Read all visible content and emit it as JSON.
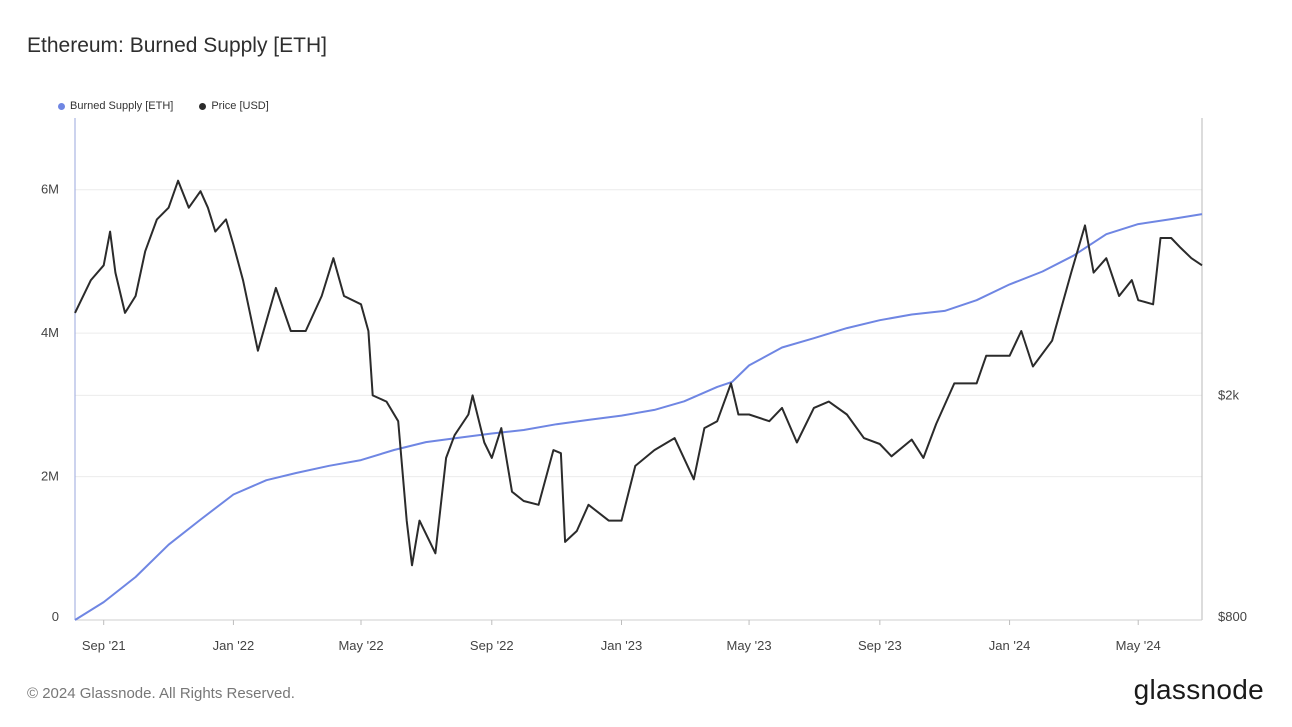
{
  "title": "Ethereum: Burned Supply [ETH]",
  "footer": "© 2024 Glassnode. All Rights Reserved.",
  "brand": "glassnode",
  "colors": {
    "burned": "#6f86e3",
    "price": "#2b2b2b",
    "grid": "#ececec",
    "axis": "#9aa7dd"
  },
  "chart_data": {
    "type": "line",
    "x_ticks": [
      "Sep '21",
      "Jan '22",
      "May '22",
      "Sep '22",
      "Jan '23",
      "May '23",
      "Sep '23",
      "Jan '24",
      "May '24"
    ],
    "x_tick_dates": [
      "2021-09-01",
      "2022-01-01",
      "2022-05-01",
      "2022-09-01",
      "2023-01-01",
      "2023-05-01",
      "2023-09-01",
      "2024-01-01",
      "2024-05-01"
    ],
    "x_range": [
      "2021-08-05",
      "2024-06-30"
    ],
    "y_left": {
      "range": [
        0,
        7000000
      ],
      "ticks": [
        0,
        2000000,
        4000000,
        6000000
      ],
      "tick_labels": [
        "0",
        "2M",
        "4M",
        "6M"
      ]
    },
    "y_right": {
      "scale": "log",
      "range": [
        800,
        6200
      ],
      "ticks": [
        800,
        2000
      ],
      "tick_labels": [
        "$800",
        "$2k"
      ]
    },
    "grid": true,
    "legend_position": "top-left",
    "series": [
      {
        "name": "Burned Supply [ETH]",
        "axis": "left",
        "color": "#6f86e3",
        "points": [
          [
            "2021-08-05",
            0
          ],
          [
            "2021-09-01",
            250000
          ],
          [
            "2021-10-01",
            600000
          ],
          [
            "2021-11-01",
            1050000
          ],
          [
            "2021-12-01",
            1400000
          ],
          [
            "2022-01-01",
            1750000
          ],
          [
            "2022-02-01",
            1950000
          ],
          [
            "2022-03-01",
            2050000
          ],
          [
            "2022-04-01",
            2150000
          ],
          [
            "2022-05-01",
            2230000
          ],
          [
            "2022-06-01",
            2370000
          ],
          [
            "2022-07-01",
            2480000
          ],
          [
            "2022-08-01",
            2540000
          ],
          [
            "2022-09-01",
            2600000
          ],
          [
            "2022-10-01",
            2650000
          ],
          [
            "2022-11-01",
            2730000
          ],
          [
            "2022-12-01",
            2790000
          ],
          [
            "2023-01-01",
            2850000
          ],
          [
            "2023-02-01",
            2930000
          ],
          [
            "2023-03-01",
            3050000
          ],
          [
            "2023-04-01",
            3250000
          ],
          [
            "2023-04-15",
            3320000
          ],
          [
            "2023-05-01",
            3550000
          ],
          [
            "2023-06-01",
            3800000
          ],
          [
            "2023-07-01",
            3930000
          ],
          [
            "2023-08-01",
            4070000
          ],
          [
            "2023-09-01",
            4180000
          ],
          [
            "2023-10-01",
            4260000
          ],
          [
            "2023-11-01",
            4310000
          ],
          [
            "2023-12-01",
            4460000
          ],
          [
            "2024-01-01",
            4680000
          ],
          [
            "2024-02-01",
            4860000
          ],
          [
            "2024-03-01",
            5080000
          ],
          [
            "2024-04-01",
            5380000
          ],
          [
            "2024-05-01",
            5520000
          ],
          [
            "2024-06-01",
            5590000
          ],
          [
            "2024-06-30",
            5660000
          ]
        ]
      },
      {
        "name": "Price [USD]",
        "axis": "right",
        "color": "#2b2b2b",
        "points": [
          [
            "2021-08-05",
            2800
          ],
          [
            "2021-08-20",
            3200
          ],
          [
            "2021-09-01",
            3400
          ],
          [
            "2021-09-07",
            3900
          ],
          [
            "2021-09-12",
            3300
          ],
          [
            "2021-09-21",
            2800
          ],
          [
            "2021-10-01",
            3000
          ],
          [
            "2021-10-10",
            3600
          ],
          [
            "2021-10-21",
            4100
          ],
          [
            "2021-11-01",
            4300
          ],
          [
            "2021-11-10",
            4800
          ],
          [
            "2021-11-20",
            4300
          ],
          [
            "2021-12-01",
            4600
          ],
          [
            "2021-12-08",
            4300
          ],
          [
            "2021-12-15",
            3900
          ],
          [
            "2021-12-25",
            4100
          ],
          [
            "2022-01-01",
            3700
          ],
          [
            "2022-01-10",
            3200
          ],
          [
            "2022-01-24",
            2400
          ],
          [
            "2022-02-10",
            3100
          ],
          [
            "2022-02-24",
            2600
          ],
          [
            "2022-03-10",
            2600
          ],
          [
            "2022-03-25",
            3000
          ],
          [
            "2022-04-05",
            3500
          ],
          [
            "2022-04-15",
            3000
          ],
          [
            "2022-05-01",
            2900
          ],
          [
            "2022-05-08",
            2600
          ],
          [
            "2022-05-12",
            2000
          ],
          [
            "2022-05-25",
            1950
          ],
          [
            "2022-06-05",
            1800
          ],
          [
            "2022-06-13",
            1200
          ],
          [
            "2022-06-18",
            1000
          ],
          [
            "2022-06-25",
            1200
          ],
          [
            "2022-07-10",
            1050
          ],
          [
            "2022-07-20",
            1550
          ],
          [
            "2022-07-28",
            1700
          ],
          [
            "2022-08-10",
            1850
          ],
          [
            "2022-08-14",
            2000
          ],
          [
            "2022-08-25",
            1650
          ],
          [
            "2022-09-01",
            1550
          ],
          [
            "2022-09-10",
            1750
          ],
          [
            "2022-09-20",
            1350
          ],
          [
            "2022-10-01",
            1300
          ],
          [
            "2022-10-15",
            1280
          ],
          [
            "2022-10-29",
            1600
          ],
          [
            "2022-11-05",
            1580
          ],
          [
            "2022-11-09",
            1100
          ],
          [
            "2022-11-20",
            1150
          ],
          [
            "2022-12-01",
            1280
          ],
          [
            "2022-12-20",
            1200
          ],
          [
            "2023-01-01",
            1200
          ],
          [
            "2023-01-14",
            1500
          ],
          [
            "2023-02-01",
            1600
          ],
          [
            "2023-02-20",
            1680
          ],
          [
            "2023-03-10",
            1420
          ],
          [
            "2023-03-20",
            1750
          ],
          [
            "2023-04-01",
            1800
          ],
          [
            "2023-04-14",
            2100
          ],
          [
            "2023-04-21",
            1850
          ],
          [
            "2023-05-01",
            1850
          ],
          [
            "2023-05-20",
            1800
          ],
          [
            "2023-06-01",
            1900
          ],
          [
            "2023-06-15",
            1650
          ],
          [
            "2023-07-01",
            1900
          ],
          [
            "2023-07-15",
            1950
          ],
          [
            "2023-08-01",
            1850
          ],
          [
            "2023-08-17",
            1680
          ],
          [
            "2023-09-01",
            1640
          ],
          [
            "2023-09-12",
            1560
          ],
          [
            "2023-10-01",
            1670
          ],
          [
            "2023-10-12",
            1550
          ],
          [
            "2023-10-24",
            1780
          ],
          [
            "2023-11-10",
            2100
          ],
          [
            "2023-12-01",
            2100
          ],
          [
            "2023-12-10",
            2350
          ],
          [
            "2024-01-01",
            2350
          ],
          [
            "2024-01-12",
            2600
          ],
          [
            "2024-01-23",
            2250
          ],
          [
            "2024-02-10",
            2500
          ],
          [
            "2024-02-28",
            3300
          ],
          [
            "2024-03-12",
            4000
          ],
          [
            "2024-03-20",
            3300
          ],
          [
            "2024-04-01",
            3500
          ],
          [
            "2024-04-13",
            3000
          ],
          [
            "2024-04-25",
            3200
          ],
          [
            "2024-05-01",
            2950
          ],
          [
            "2024-05-15",
            2900
          ],
          [
            "2024-05-22",
            3800
          ],
          [
            "2024-06-01",
            3800
          ],
          [
            "2024-06-10",
            3650
          ],
          [
            "2024-06-20",
            3500
          ],
          [
            "2024-06-30",
            3400
          ]
        ]
      }
    ]
  }
}
